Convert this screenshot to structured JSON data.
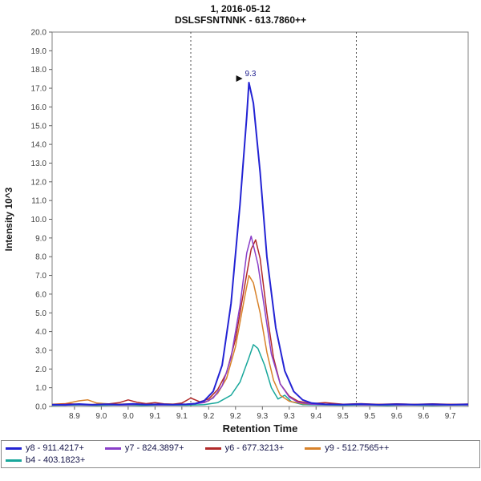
{
  "title": {
    "line1": "1, 2016-05-12",
    "line2": "DSLSFSNTNNK - 613.7860++"
  },
  "chart_data": {
    "type": "line",
    "title": "1, 2016-05-12",
    "subtitle": "DSLSFSNTNNK - 613.7860++",
    "xlabel": "Retention Time",
    "ylabel": "Intensity 10^3",
    "xlim": [
      8.85,
      9.78
    ],
    "ylim": [
      0,
      20
    ],
    "grid": false,
    "legend_position": "bottom",
    "y_ticks": [
      "0.0",
      "1.0",
      "2.0",
      "3.0",
      "4.0",
      "5.0",
      "6.0",
      "7.0",
      "8.0",
      "9.0",
      "10.0",
      "11.0",
      "12.0",
      "13.0",
      "14.0",
      "15.0",
      "16.0",
      "17.0",
      "18.0",
      "19.0",
      "20.0"
    ],
    "x_ticks": [
      {
        "x": 8.9,
        "label": "8.9"
      },
      {
        "x": 8.96,
        "label": "9.0"
      },
      {
        "x": 9.02,
        "label": "9.0"
      },
      {
        "x": 9.08,
        "label": "9.1"
      },
      {
        "x": 9.14,
        "label": "9.1"
      },
      {
        "x": 9.2,
        "label": "9.2"
      },
      {
        "x": 9.26,
        "label": "9.2"
      },
      {
        "x": 9.32,
        "label": "9.3"
      },
      {
        "x": 9.38,
        "label": "9.3"
      },
      {
        "x": 9.44,
        "label": "9.4"
      },
      {
        "x": 9.5,
        "label": "9.5"
      },
      {
        "x": 9.56,
        "label": "9.5"
      },
      {
        "x": 9.62,
        "label": "9.6"
      },
      {
        "x": 9.68,
        "label": "9.6"
      },
      {
        "x": 9.74,
        "label": "9.7"
      }
    ],
    "integration_boundaries": [
      9.16,
      9.53
    ],
    "peak_annotation": {
      "x": 9.29,
      "y": 17.3,
      "label": "9.3",
      "color": "#202090"
    },
    "series": [
      {
        "id": "y8",
        "name": "y8 - 911.4217+",
        "color": "#2323d4",
        "peak_apex_rt": 9.3,
        "peak_height": 17.3,
        "points": [
          [
            8.85,
            0.1
          ],
          [
            8.88,
            0.08
          ],
          [
            8.91,
            0.13
          ],
          [
            8.94,
            0.09
          ],
          [
            8.97,
            0.12
          ],
          [
            9.0,
            0.1
          ],
          [
            9.03,
            0.14
          ],
          [
            9.06,
            0.1
          ],
          [
            9.09,
            0.12
          ],
          [
            9.12,
            0.1
          ],
          [
            9.15,
            0.12
          ],
          [
            9.17,
            0.15
          ],
          [
            9.19,
            0.3
          ],
          [
            9.21,
            0.8
          ],
          [
            9.23,
            2.2
          ],
          [
            9.25,
            5.5
          ],
          [
            9.27,
            10.8
          ],
          [
            9.285,
            15.5
          ],
          [
            9.29,
            17.3
          ],
          [
            9.3,
            16.2
          ],
          [
            9.315,
            12.5
          ],
          [
            9.33,
            8.0
          ],
          [
            9.35,
            4.2
          ],
          [
            9.37,
            1.9
          ],
          [
            9.39,
            0.8
          ],
          [
            9.41,
            0.35
          ],
          [
            9.43,
            0.18
          ],
          [
            9.46,
            0.12
          ],
          [
            9.5,
            0.1
          ],
          [
            9.54,
            0.13
          ],
          [
            9.58,
            0.09
          ],
          [
            9.62,
            0.12
          ],
          [
            9.66,
            0.1
          ],
          [
            9.7,
            0.12
          ],
          [
            9.74,
            0.09
          ],
          [
            9.78,
            0.11
          ]
        ]
      },
      {
        "id": "y7",
        "name": "y7 - 824.3897+",
        "color": "#8a3fc9",
        "peak_apex_rt": 9.3,
        "peak_height": 9.1,
        "points": [
          [
            8.85,
            0.08
          ],
          [
            8.89,
            0.11
          ],
          [
            8.93,
            0.08
          ],
          [
            8.97,
            0.1
          ],
          [
            9.01,
            0.08
          ],
          [
            9.05,
            0.11
          ],
          [
            9.09,
            0.08
          ],
          [
            9.13,
            0.1
          ],
          [
            9.16,
            0.12
          ],
          [
            9.19,
            0.2
          ],
          [
            9.21,
            0.45
          ],
          [
            9.23,
            1.1
          ],
          [
            9.25,
            2.6
          ],
          [
            9.27,
            5.4
          ],
          [
            9.285,
            8.2
          ],
          [
            9.295,
            9.1
          ],
          [
            9.31,
            7.6
          ],
          [
            9.325,
            5.2
          ],
          [
            9.34,
            2.8
          ],
          [
            9.36,
            1.2
          ],
          [
            9.38,
            0.5
          ],
          [
            9.4,
            0.22
          ],
          [
            9.43,
            0.12
          ],
          [
            9.47,
            0.09
          ],
          [
            9.51,
            0.11
          ],
          [
            9.55,
            0.08
          ],
          [
            9.59,
            0.1
          ],
          [
            9.63,
            0.08
          ],
          [
            9.67,
            0.1
          ],
          [
            9.71,
            0.08
          ],
          [
            9.75,
            0.1
          ],
          [
            9.78,
            0.08
          ]
        ]
      },
      {
        "id": "y6",
        "name": "y6 - 677.3213+",
        "color": "#b22a2a",
        "peak_apex_rt": 9.3,
        "peak_height": 8.9,
        "points": [
          [
            8.85,
            0.1
          ],
          [
            8.89,
            0.14
          ],
          [
            8.93,
            0.1
          ],
          [
            8.97,
            0.12
          ],
          [
            9.0,
            0.2
          ],
          [
            9.02,
            0.35
          ],
          [
            9.04,
            0.22
          ],
          [
            9.06,
            0.15
          ],
          [
            9.08,
            0.2
          ],
          [
            9.1,
            0.14
          ],
          [
            9.12,
            0.12
          ],
          [
            9.14,
            0.18
          ],
          [
            9.16,
            0.45
          ],
          [
            9.18,
            0.25
          ],
          [
            9.2,
            0.4
          ],
          [
            9.22,
            0.9
          ],
          [
            9.24,
            1.8
          ],
          [
            9.26,
            3.6
          ],
          [
            9.28,
            6.4
          ],
          [
            9.295,
            8.4
          ],
          [
            9.305,
            8.9
          ],
          [
            9.315,
            7.9
          ],
          [
            9.33,
            5.0
          ],
          [
            9.345,
            2.6
          ],
          [
            9.36,
            1.2
          ],
          [
            9.38,
            0.55
          ],
          [
            9.4,
            0.28
          ],
          [
            9.43,
            0.15
          ],
          [
            9.46,
            0.2
          ],
          [
            9.5,
            0.12
          ],
          [
            9.54,
            0.15
          ],
          [
            9.58,
            0.11
          ],
          [
            9.62,
            0.14
          ],
          [
            9.66,
            0.11
          ],
          [
            9.7,
            0.14
          ],
          [
            9.74,
            0.11
          ],
          [
            9.78,
            0.13
          ]
        ]
      },
      {
        "id": "y9",
        "name": "y9 - 512.7565++",
        "color": "#d8822a",
        "peak_apex_rt": 9.3,
        "peak_height": 7.0,
        "points": [
          [
            8.85,
            0.12
          ],
          [
            8.88,
            0.15
          ],
          [
            8.91,
            0.3
          ],
          [
            8.93,
            0.35
          ],
          [
            8.95,
            0.18
          ],
          [
            8.99,
            0.12
          ],
          [
            9.03,
            0.14
          ],
          [
            9.07,
            0.11
          ],
          [
            9.11,
            0.13
          ],
          [
            9.15,
            0.12
          ],
          [
            9.18,
            0.18
          ],
          [
            9.2,
            0.3
          ],
          [
            9.22,
            0.7
          ],
          [
            9.24,
            1.5
          ],
          [
            9.26,
            3.2
          ],
          [
            9.28,
            5.8
          ],
          [
            9.29,
            7.0
          ],
          [
            9.3,
            6.6
          ],
          [
            9.315,
            5.0
          ],
          [
            9.33,
            2.9
          ],
          [
            9.345,
            1.4
          ],
          [
            9.36,
            0.6
          ],
          [
            9.38,
            0.28
          ],
          [
            9.41,
            0.14
          ],
          [
            9.45,
            0.11
          ],
          [
            9.49,
            0.13
          ],
          [
            9.53,
            0.1
          ],
          [
            9.57,
            0.12
          ],
          [
            9.61,
            0.1
          ],
          [
            9.65,
            0.12
          ],
          [
            9.69,
            0.1
          ],
          [
            9.73,
            0.12
          ],
          [
            9.78,
            0.1
          ]
        ]
      },
      {
        "id": "b4",
        "name": "b4 - 403.1823+",
        "color": "#18a79b",
        "peak_apex_rt": 9.3,
        "peak_height": 3.3,
        "points": [
          [
            8.85,
            0.06
          ],
          [
            8.9,
            0.08
          ],
          [
            8.95,
            0.06
          ],
          [
            9.0,
            0.08
          ],
          [
            9.05,
            0.06
          ],
          [
            9.1,
            0.08
          ],
          [
            9.15,
            0.07
          ],
          [
            9.19,
            0.1
          ],
          [
            9.22,
            0.2
          ],
          [
            9.25,
            0.6
          ],
          [
            9.27,
            1.3
          ],
          [
            9.29,
            2.6
          ],
          [
            9.3,
            3.3
          ],
          [
            9.31,
            3.1
          ],
          [
            9.325,
            2.2
          ],
          [
            9.34,
            1.0
          ],
          [
            9.355,
            0.4
          ],
          [
            9.37,
            0.6
          ],
          [
            9.385,
            0.25
          ],
          [
            9.41,
            0.1
          ],
          [
            9.45,
            0.08
          ],
          [
            9.5,
            0.07
          ],
          [
            9.55,
            0.08
          ],
          [
            9.6,
            0.06
          ],
          [
            9.65,
            0.08
          ],
          [
            9.7,
            0.06
          ],
          [
            9.75,
            0.08
          ],
          [
            9.78,
            0.07
          ]
        ]
      }
    ]
  }
}
